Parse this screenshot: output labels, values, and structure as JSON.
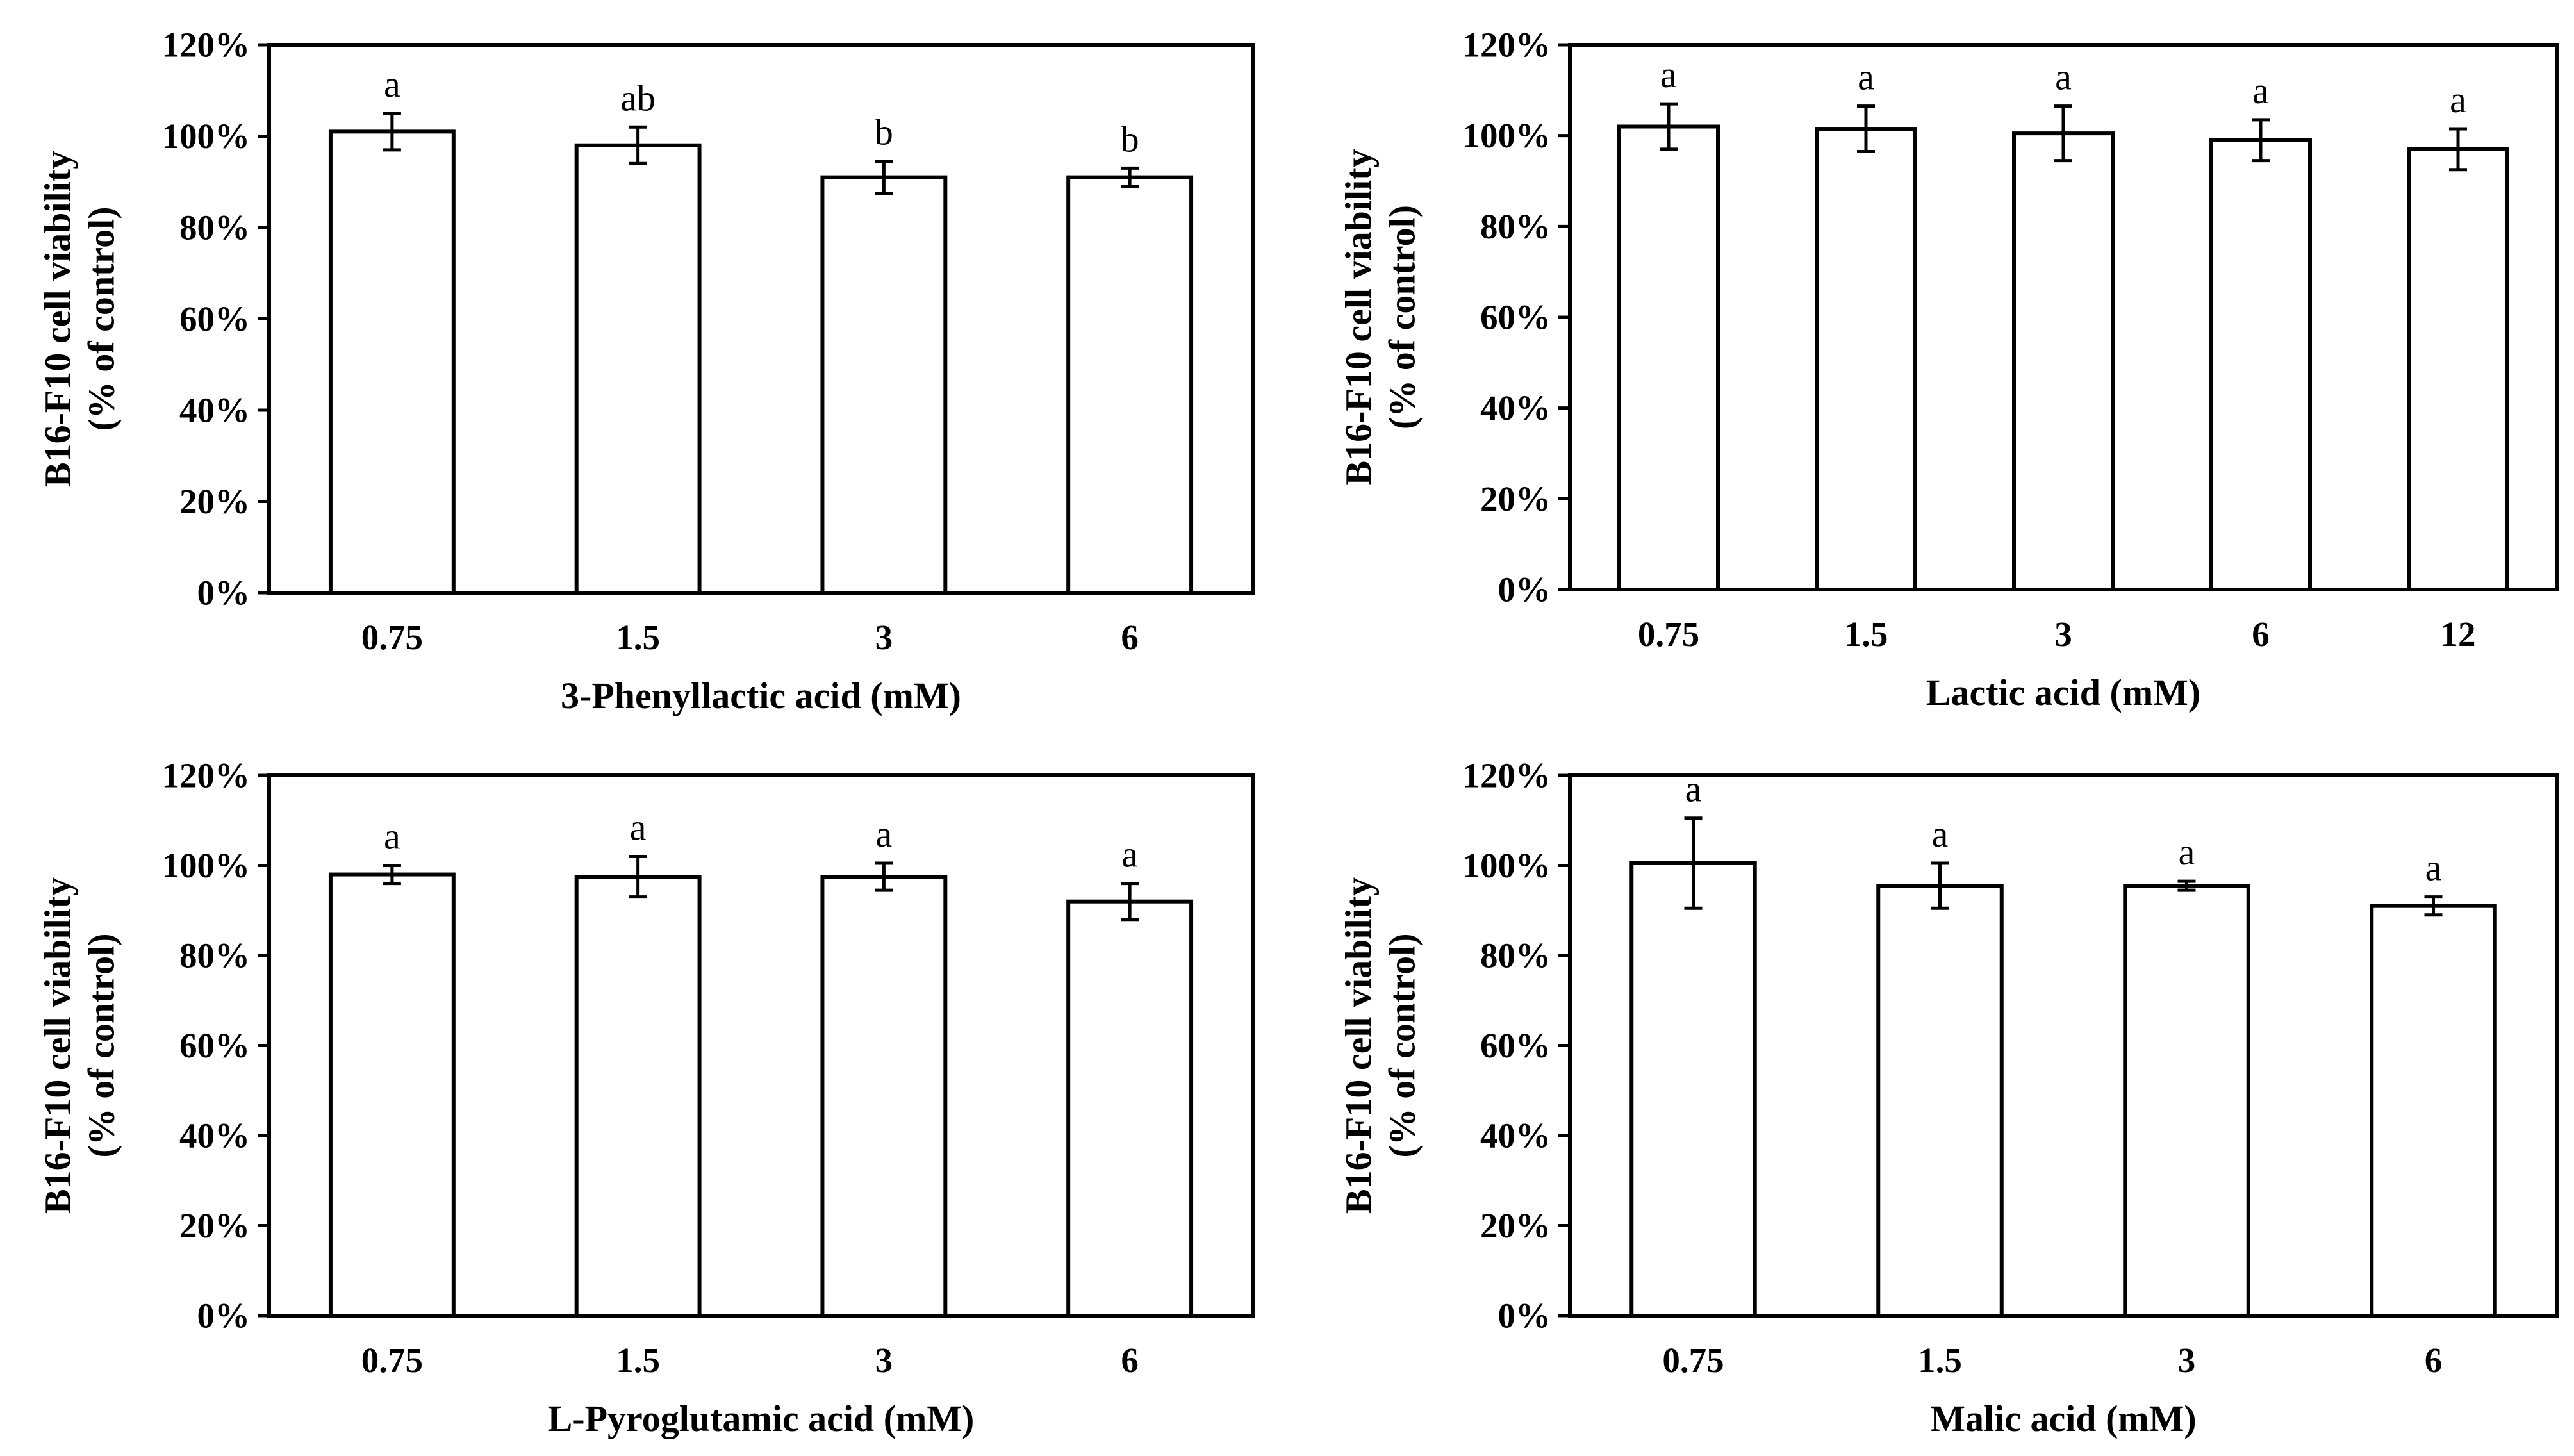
{
  "chart_data": [
    {
      "type": "bar",
      "title": "",
      "xlabel": "3-Phenyllactic acid (mM)",
      "ylabel_lines": [
        "B16-F10 cell viability",
        "(% of control)"
      ],
      "ylim": [
        0,
        120
      ],
      "y_ticks": [
        "0%",
        "20%",
        "40%",
        "60%",
        "80%",
        "100%",
        "120%"
      ],
      "categories": [
        "0.75",
        "1.5",
        "3",
        "6"
      ],
      "values": [
        101,
        98,
        91,
        91
      ],
      "errors": [
        4,
        4,
        3.5,
        2
      ],
      "significance": [
        "a",
        "ab",
        "b",
        "b"
      ]
    },
    {
      "type": "bar",
      "title": "",
      "xlabel": "Lactic acid (mM)",
      "ylabel_lines": [
        "B16-F10 cell viability",
        "(% of control)"
      ],
      "ylim": [
        0,
        120
      ],
      "y_ticks": [
        "0%",
        "20%",
        "40%",
        "60%",
        "80%",
        "100%",
        "120%"
      ],
      "categories": [
        "0.75",
        "1.5",
        "3",
        "6",
        "12"
      ],
      "values": [
        102,
        101.5,
        100.5,
        99,
        97
      ],
      "errors": [
        5,
        5,
        6,
        4.5,
        4.5
      ],
      "significance": [
        "a",
        "a",
        "a",
        "a",
        "a"
      ]
    },
    {
      "type": "bar",
      "title": "",
      "xlabel": "L-Pyroglutamic acid (mM)",
      "ylabel_lines": [
        "B16-F10 cell viability",
        "(% of control)"
      ],
      "ylim": [
        0,
        120
      ],
      "y_ticks": [
        "0%",
        "20%",
        "40%",
        "60%",
        "80%",
        "100%",
        "120%"
      ],
      "categories": [
        "0.75",
        "1.5",
        "3",
        "6"
      ],
      "values": [
        98,
        97.5,
        97.5,
        92
      ],
      "errors": [
        2,
        4.5,
        3,
        4
      ],
      "significance": [
        "a",
        "a",
        "a",
        "a"
      ]
    },
    {
      "type": "bar",
      "title": "",
      "xlabel": "Malic acid (mM)",
      "ylabel_lines": [
        "B16-F10 cell viability",
        "(% of control)"
      ],
      "ylim": [
        0,
        120
      ],
      "y_ticks": [
        "0%",
        "20%",
        "40%",
        "60%",
        "80%",
        "100%",
        "120%"
      ],
      "categories": [
        "0.75",
        "1.5",
        "3",
        "6"
      ],
      "values": [
        100.5,
        95.5,
        95.5,
        91
      ],
      "errors": [
        10,
        5,
        1,
        2
      ],
      "significance": [
        "a",
        "a",
        "a",
        "a"
      ]
    }
  ]
}
